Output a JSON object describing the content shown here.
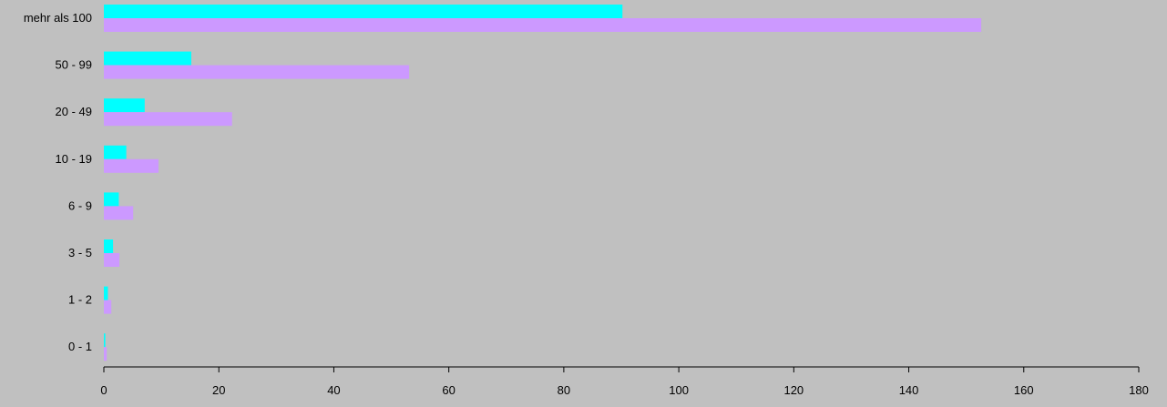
{
  "chart_data": {
    "type": "bar",
    "orientation": "horizontal",
    "title": "",
    "xlabel": "",
    "ylabel": "",
    "xlim": [
      0,
      180
    ],
    "x_ticks": [
      0,
      20,
      40,
      60,
      80,
      100,
      120,
      140,
      160,
      180
    ],
    "grid": false,
    "legend": "none",
    "categories": [
      "mehr als 100",
      "50 - 99",
      "20 - 49",
      "10 - 19",
      "6 - 9",
      "3 - 5",
      "1 - 2",
      "0 - 1"
    ],
    "series": [
      {
        "values": [
          90.2,
          15.2,
          7.1,
          3.9,
          2.6,
          1.6,
          0.7,
          0.25
        ],
        "color": "#00ffff"
      },
      {
        "values": [
          152.6,
          53.1,
          22.3,
          9.5,
          5.1,
          2.7,
          1.3,
          0.5
        ],
        "color": "#cc99ff"
      }
    ]
  }
}
